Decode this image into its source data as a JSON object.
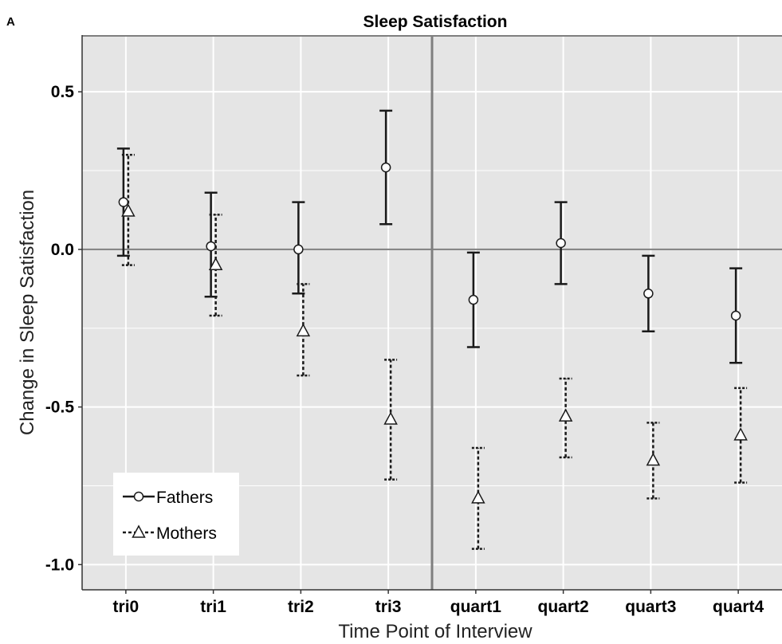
{
  "chart_data": {
    "type": "errorbar",
    "panel_label": "A",
    "title": "Sleep Satisfaction",
    "xlabel": "Time Point of Interview",
    "ylabel": "Change in Sleep Satisfaction",
    "categories": [
      "tri0",
      "tri1",
      "tri2",
      "tri3",
      "quart1",
      "quart2",
      "quart3",
      "quart4"
    ],
    "ylim": [
      -1.08,
      0.68
    ],
    "yticks": [
      0.5,
      0.0,
      -0.5,
      -1.0
    ],
    "ytick_labels": [
      "0.5",
      "0.0",
      "-0.5",
      "-1.0"
    ],
    "reference_line_y": 0.0,
    "divider_after_category": "tri3",
    "grid": true,
    "legend_position": "bottom-left",
    "series": [
      {
        "name": "Fathers",
        "marker": "circle",
        "line_style": "solid",
        "values": [
          0.15,
          0.01,
          0.0,
          0.26,
          -0.16,
          0.02,
          -0.14,
          -0.21
        ],
        "lower": [
          -0.02,
          -0.15,
          -0.14,
          0.08,
          -0.31,
          -0.11,
          -0.26,
          -0.36
        ],
        "upper": [
          0.32,
          0.18,
          0.15,
          0.44,
          -0.01,
          0.15,
          -0.02,
          -0.06
        ]
      },
      {
        "name": "Mothers",
        "marker": "triangle",
        "line_style": "dashed",
        "values": [
          0.12,
          -0.05,
          -0.26,
          -0.54,
          -0.79,
          -0.53,
          -0.67,
          -0.59
        ],
        "lower": [
          -0.05,
          -0.21,
          -0.4,
          -0.73,
          -0.95,
          -0.66,
          -0.79,
          -0.74
        ],
        "upper": [
          0.3,
          0.11,
          -0.11,
          -0.35,
          -0.63,
          -0.41,
          -0.55,
          -0.44
        ]
      }
    ],
    "colors": {
      "panel_bg": "#e5e5e5",
      "grid": "#ffffff",
      "ref_line": "#7f7f7f",
      "errorbar": "#1a1a1a",
      "marker_fill": "#ffffff",
      "legend_bg": "#ffffff"
    }
  }
}
